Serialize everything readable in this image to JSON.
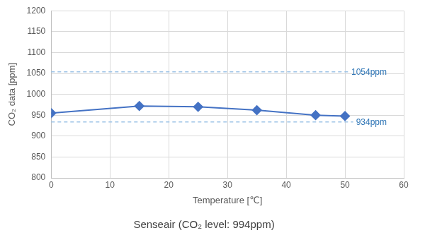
{
  "chart_data": {
    "type": "line",
    "title": "Senseair (CO₂ level: 994ppm)",
    "x_label": "Temperature [℃]",
    "y_label": "CO₂ data [ppm]",
    "x": [
      0,
      15,
      25,
      35,
      45,
      50
    ],
    "series": [
      {
        "name": "CO₂ data",
        "color": "#4472c4",
        "marker": "diamond",
        "line_style": "solid",
        "values": [
          955,
          972,
          970,
          962,
          950,
          948
        ]
      }
    ],
    "xlim": [
      0,
      60
    ],
    "xticks": [
      0,
      10,
      20,
      30,
      40,
      50,
      60
    ],
    "ylim": [
      800,
      1200
    ],
    "yticks": [
      800,
      850,
      900,
      950,
      1000,
      1050,
      1100,
      1150,
      1200
    ],
    "grid": true,
    "annotations": [
      {
        "y": 1054,
        "label": "1054ppm",
        "color": "#9dc3e6",
        "line_style": "dashed"
      },
      {
        "y": 934,
        "label": "934ppm",
        "color": "#9dc3e6",
        "line_style": "dashed"
      }
    ]
  }
}
